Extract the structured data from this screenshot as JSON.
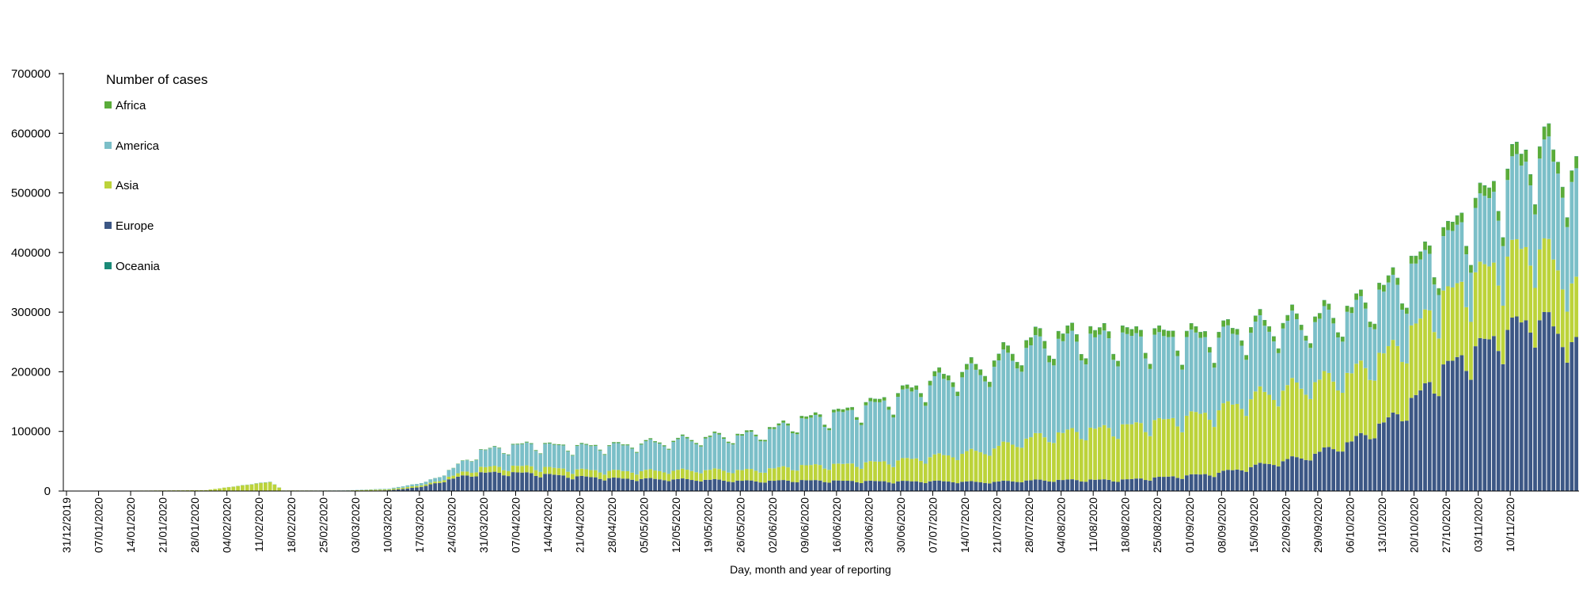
{
  "chart_data": {
    "type": "bar",
    "stacked": true,
    "title": "",
    "xlabel": "Day, month and year of reporting",
    "ylabel": "",
    "ylim": [
      0,
      700000
    ],
    "y_ticks": [
      "700000",
      "600000",
      "500000",
      "400000",
      "300000",
      "200000",
      "100000",
      "0"
    ],
    "y_tick_values": [
      700000,
      600000,
      500000,
      400000,
      300000,
      200000,
      100000,
      0
    ],
    "legend_title": "Number of cases",
    "legend_position": "top-left",
    "series": [
      {
        "name": "Africa",
        "color": "#5aac3a"
      },
      {
        "name": "America",
        "color": "#7bbfc8"
      },
      {
        "name": "Asia",
        "color": "#bcd33a"
      },
      {
        "name": "Europe",
        "color": "#3c5785"
      },
      {
        "name": "Oceania",
        "color": "#1a8a78"
      }
    ],
    "start_date": "31/12/2019",
    "days": 330,
    "x_tick_labels": [
      "31/12/2019",
      "07/01/2020",
      "14/01/2020",
      "21/01/2020",
      "28/01/2020",
      "04/02/2020",
      "11/02/2020",
      "18/02/2020",
      "25/02/2020",
      "03/03/2020",
      "10/03/2020",
      "17/03/2020",
      "24/03/2020",
      "31/03/2020",
      "07/04/2020",
      "14/04/2020",
      "21/04/2020",
      "28/04/2020",
      "05/05/2020",
      "12/05/2020",
      "19/05/2020",
      "26/05/2020",
      "02/06/2020",
      "09/06/2020",
      "16/06/2020",
      "23/06/2020",
      "30/06/2020",
      "07/07/2020",
      "14/07/2020",
      "21/07/2020",
      "28/07/2020",
      "04/08/2020",
      "11/08/2020",
      "18/08/2020",
      "25/08/2020",
      "01/09/2020",
      "08/09/2020",
      "15/09/2020",
      "22/09/2020",
      "29/09/2020",
      "06/10/2020",
      "13/10/2020",
      "20/10/2020",
      "27/10/2020",
      "03/11/2020",
      "10/11/2020"
    ],
    "trend_anchors_day_total": [
      [
        0,
        0
      ],
      [
        30,
        1500
      ],
      [
        44,
        16000
      ],
      [
        47,
        1000
      ],
      [
        60,
        1000
      ],
      [
        70,
        4000
      ],
      [
        78,
        15000
      ],
      [
        84,
        40000
      ],
      [
        90,
        70000
      ],
      [
        100,
        82000
      ],
      [
        110,
        78000
      ],
      [
        120,
        80000
      ],
      [
        130,
        87000
      ],
      [
        140,
        95000
      ],
      [
        150,
        100000
      ],
      [
        160,
        125000
      ],
      [
        170,
        140000
      ],
      [
        180,
        165000
      ],
      [
        190,
        200000
      ],
      [
        200,
        220000
      ],
      [
        210,
        265000
      ],
      [
        220,
        275000
      ],
      [
        230,
        275000
      ],
      [
        240,
        272000
      ],
      [
        250,
        275000
      ],
      [
        260,
        292000
      ],
      [
        270,
        300000
      ],
      [
        280,
        318000
      ],
      [
        290,
        370000
      ],
      [
        300,
        440000
      ],
      [
        310,
        520000
      ],
      [
        320,
        610000
      ],
      [
        329,
        560000
      ]
    ],
    "europe_share_anchors": [
      [
        0,
        0.0
      ],
      [
        60,
        0.05
      ],
      [
        72,
        0.4
      ],
      [
        80,
        0.6
      ],
      [
        90,
        0.45
      ],
      [
        100,
        0.38
      ],
      [
        120,
        0.27
      ],
      [
        150,
        0.17
      ],
      [
        180,
        0.1
      ],
      [
        200,
        0.07
      ],
      [
        230,
        0.07
      ],
      [
        250,
        0.11
      ],
      [
        270,
        0.2
      ],
      [
        280,
        0.27
      ],
      [
        290,
        0.36
      ],
      [
        300,
        0.48
      ],
      [
        310,
        0.5
      ],
      [
        320,
        0.5
      ],
      [
        329,
        0.46
      ]
    ],
    "asia_share_anchors": [
      [
        0,
        1.0
      ],
      [
        30,
        0.95
      ],
      [
        50,
        0.9
      ],
      [
        60,
        0.7
      ],
      [
        72,
        0.3
      ],
      [
        80,
        0.12
      ],
      [
        100,
        0.14
      ],
      [
        130,
        0.17
      ],
      [
        160,
        0.2
      ],
      [
        190,
        0.22
      ],
      [
        210,
        0.28
      ],
      [
        240,
        0.36
      ],
      [
        260,
        0.42
      ],
      [
        270,
        0.42
      ],
      [
        290,
        0.32
      ],
      [
        310,
        0.24
      ],
      [
        329,
        0.18
      ]
    ],
    "africa_share_anchors": [
      [
        0,
        0.0
      ],
      [
        80,
        0.01
      ],
      [
        130,
        0.02
      ],
      [
        180,
        0.035
      ],
      [
        210,
        0.05
      ],
      [
        230,
        0.04
      ],
      [
        270,
        0.03
      ],
      [
        329,
        0.035
      ]
    ],
    "oceania_share_anchors": [
      [
        0,
        0.0
      ],
      [
        90,
        0.003
      ],
      [
        200,
        0.002
      ],
      [
        329,
        0.001
      ]
    ]
  }
}
